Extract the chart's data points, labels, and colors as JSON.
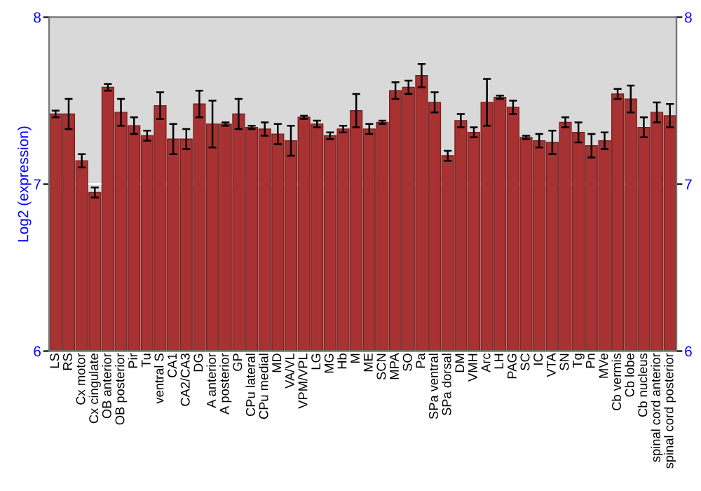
{
  "chart_data": {
    "type": "bar",
    "ylabel": "Log2 (expression)",
    "categories": [
      "LS",
      "RS",
      "Cx motor",
      "Cx cingulate",
      "OB anterior",
      "OB posterior",
      "Pir",
      "Tu",
      "ventral S",
      "CA1",
      "CA2/CA3",
      "DG",
      "A anterior",
      "A posterior",
      "GP",
      "CPu lateral",
      "CPu medial",
      "MD",
      "VA/VL",
      "VPM/VPL",
      "LG",
      "MG",
      "Hb",
      "M",
      "ME",
      "SCN",
      "MPA",
      "SO",
      "Pa",
      "SPa ventral",
      "SPa dorsal",
      "DM",
      "VMH",
      "Arc",
      "LH",
      "PAG",
      "SC",
      "IC",
      "VTA",
      "SN",
      "Tg",
      "Pn",
      "MVe",
      "Cb vermis",
      "Cb lobe",
      "Cb nucleus",
      "spinal cord anterior",
      "spinal cord posterior"
    ],
    "values": [
      7.42,
      7.42,
      7.14,
      6.95,
      7.58,
      7.43,
      7.35,
      7.29,
      7.47,
      7.27,
      7.27,
      7.48,
      7.36,
      7.36,
      7.42,
      7.34,
      7.33,
      7.3,
      7.26,
      7.4,
      7.36,
      7.29,
      7.33,
      7.44,
      7.33,
      7.37,
      7.56,
      7.58,
      7.65,
      7.49,
      7.17,
      7.38,
      7.31,
      7.49,
      7.52,
      7.46,
      7.28,
      7.26,
      7.25,
      7.37,
      7.31,
      7.23,
      7.26,
      7.54,
      7.51,
      7.34,
      7.43,
      7.41
    ],
    "errors": [
      0.02,
      0.09,
      0.04,
      0.03,
      0.02,
      0.08,
      0.05,
      0.03,
      0.08,
      0.09,
      0.06,
      0.08,
      0.14,
      0.01,
      0.09,
      0.01,
      0.04,
      0.06,
      0.09,
      0.01,
      0.02,
      0.02,
      0.02,
      0.1,
      0.03,
      0.01,
      0.05,
      0.04,
      0.07,
      0.06,
      0.03,
      0.04,
      0.03,
      0.14,
      0.01,
      0.04,
      0.01,
      0.04,
      0.07,
      0.03,
      0.06,
      0.07,
      0.05,
      0.03,
      0.08,
      0.06,
      0.06,
      0.07
    ],
    "color": "#a83232",
    "ylim": [
      6,
      8
    ],
    "yticks": [
      6,
      7,
      8
    ],
    "y2lim": [
      6,
      8
    ],
    "y2ticks": [
      6,
      7,
      8
    ],
    "grid": "y"
  }
}
